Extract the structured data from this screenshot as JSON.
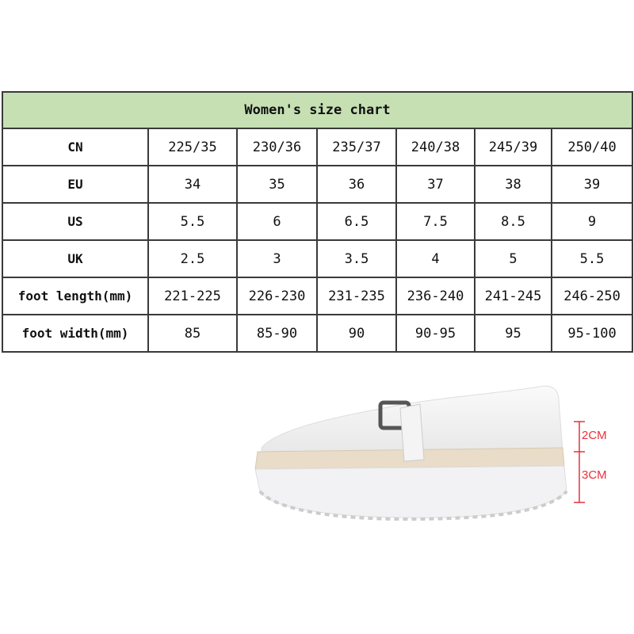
{
  "title": "Women's size chart",
  "header_color": "#c6e0b4",
  "rows": [
    {
      "label": "CN",
      "values": [
        "225/35",
        "230/36",
        "235/37",
        "240/38",
        "245/39",
        "250/40"
      ]
    },
    {
      "label": "EU",
      "values": [
        "34",
        "35",
        "36",
        "37",
        "38",
        "39"
      ]
    },
    {
      "label": "US",
      "values": [
        "5.5",
        "6",
        "6.5",
        "7.5",
        "8.5",
        "9"
      ]
    },
    {
      "label": "UK",
      "values": [
        "2.5",
        "3",
        "3.5",
        "4",
        "5",
        "5.5"
      ]
    },
    {
      "label": "foot length(mm)",
      "values": [
        "221-225",
        "226-230",
        "231-235",
        "236-240",
        "241-245",
        "246-250"
      ]
    },
    {
      "label": "foot width(mm)",
      "values": [
        "85",
        "85-90",
        "90",
        "90-95",
        "95",
        "95-100"
      ]
    }
  ],
  "measurements": {
    "upper": "2CM",
    "sole": "3CM",
    "color": "#e8303a"
  }
}
